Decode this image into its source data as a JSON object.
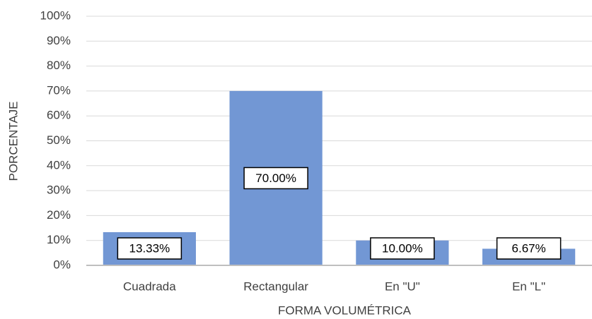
{
  "chart_data": {
    "type": "bar",
    "x_label": "FORMA VOLUMÉTRICA",
    "y_label": "PORCENTAJE",
    "categories": [
      "Cuadrada",
      "Rectangular",
      "En \"U\"",
      "En \"L\""
    ],
    "values": [
      13.33,
      70,
      10,
      6.67
    ],
    "value_labels": [
      "13.33%",
      "70.00%",
      "10.00%",
      "6.67%"
    ],
    "color": "#7297d4",
    "ylim": [
      0,
      100
    ],
    "yticks": [
      {
        "value": 0,
        "label": "0%"
      },
      {
        "value": 10,
        "label": "10%"
      },
      {
        "value": 20,
        "label": "20%"
      },
      {
        "value": 30,
        "label": "30%"
      },
      {
        "value": 40,
        "label": "40%"
      },
      {
        "value": 50,
        "label": "50%"
      },
      {
        "value": 60,
        "label": "60%"
      },
      {
        "value": 70,
        "label": "70%"
      },
      {
        "value": 80,
        "label": "80%"
      },
      {
        "value": 90,
        "label": "90%"
      },
      {
        "value": 100,
        "label": "100%"
      }
    ],
    "grid": true
  }
}
